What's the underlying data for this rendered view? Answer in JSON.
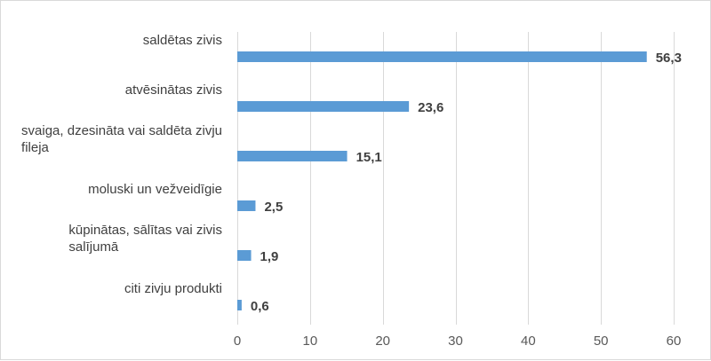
{
  "chart_data": {
    "type": "bar",
    "orientation": "horizontal",
    "categories": [
      [
        "saldētas zivis"
      ],
      [
        "atvēsinātas zivis"
      ],
      [
        "svaiga, dzesināta vai saldēta zivju",
        "fileja"
      ],
      [
        "moluski un vežveidīgie"
      ],
      [
        "kūpinātas, sālītas vai zivis",
        "salījumā"
      ],
      [
        "citi zivju produkti"
      ]
    ],
    "values": [
      56.3,
      23.6,
      15.1,
      2.5,
      1.9,
      0.6
    ],
    "data_labels": [
      "56,3",
      "23,6",
      "15,1",
      "2,5",
      "1,9",
      "0,6"
    ],
    "xlim": [
      0,
      60
    ],
    "xticks": [
      0,
      10,
      20,
      30,
      40,
      50,
      60
    ],
    "xtick_labels": [
      "0",
      "10",
      "20",
      "30",
      "40",
      "50",
      "60"
    ],
    "grid": "vertical",
    "legend": "none",
    "title": "",
    "xlabel": "",
    "ylabel": "",
    "colors": {
      "bar": "#5b9bd5",
      "grid": "#d9d9d9",
      "text": "#404040",
      "tick_text": "#595959"
    }
  }
}
